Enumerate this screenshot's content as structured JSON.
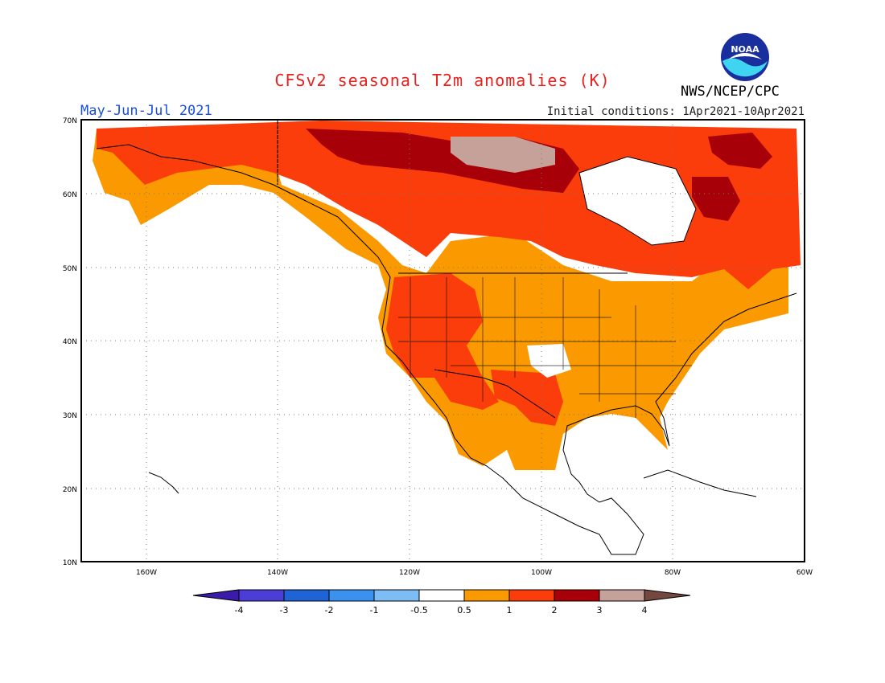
{
  "header": {
    "title": "CFSv2 seasonal T2m anomalies (K)",
    "period": "May-Jun-Jul 2021",
    "initial_conditions": "Initial conditions: 1Apr2021-10Apr2021",
    "agency": "NWS/NCEP/CPC",
    "logo_text": "NOAA"
  },
  "axes": {
    "lat_labels": [
      "70N",
      "60N",
      "50N",
      "40N",
      "30N",
      "20N",
      "10N"
    ],
    "lon_labels": [
      "160W",
      "140W",
      "120W",
      "100W",
      "80W",
      "60W"
    ]
  },
  "colorbar": {
    "labels": [
      "-4",
      "-3",
      "-2",
      "-1",
      "-0.5",
      "0.5",
      "1",
      "2",
      "3",
      "4"
    ],
    "colors": [
      "#3a1ca8",
      "#4a3ed6",
      "#1e64d6",
      "#3b91ee",
      "#7dbcf5",
      "#ffffff",
      "#fa9a00",
      "#fb3d0b",
      "#a80008",
      "#c6a199",
      "#74483f"
    ]
  },
  "anomaly_colors": {
    "weak_warm": "#fa9a00",
    "moderate_warm": "#fb3d0b",
    "strong_warm": "#a80008",
    "very_strong_warm": "#c6a199"
  }
}
